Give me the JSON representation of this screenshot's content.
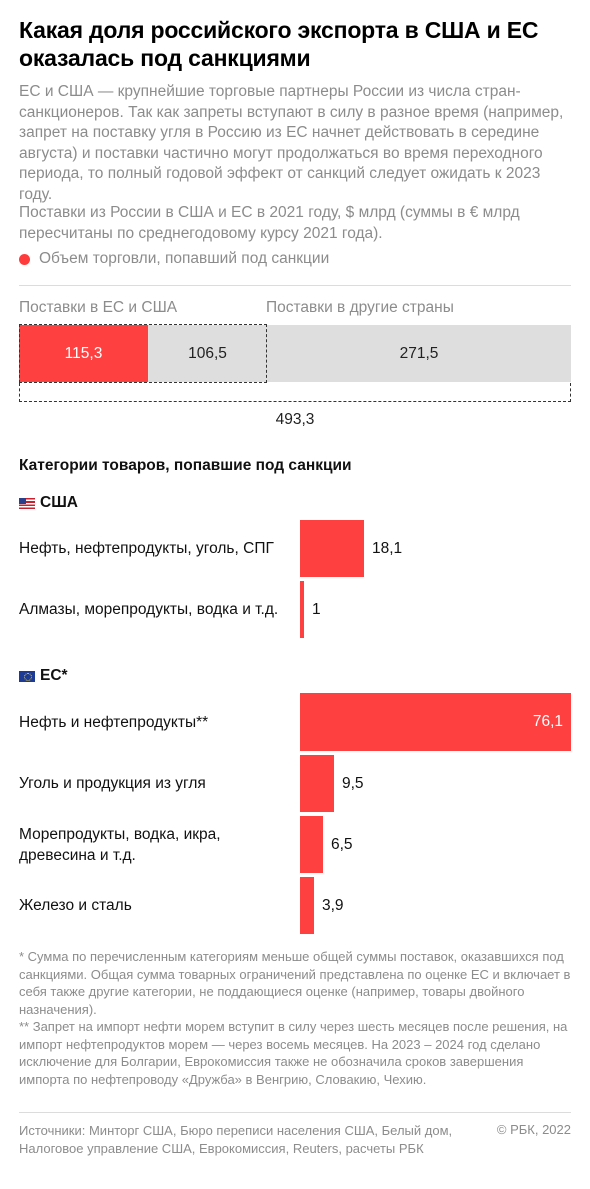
{
  "header": {
    "title": "Какая доля российского экспорта в США и ЕС оказалась под санкциями",
    "intro": "ЕС и США — крупнейшие торговые партнеры России из числа стран-санкционеров. Так как запреты вступают в силу в разное время (например, запрет на поставку угля в Россию из ЕС начнет действовать в середине августа) и поставки частично могут продолжаться во время переходного периода, то полный годовой эффект от санкций следует ожидать к 2023 году.",
    "subtitle": "Поставки из России в США и ЕС в 2021 году, $ млрд (суммы в € млрд пересчитаны по среднегодовому курсу 2021 года).",
    "legend_label": "Объем торговли, попавший под санкции"
  },
  "colors": {
    "sanctioned": "#ff4040",
    "other": "#dedede",
    "text": "#111111",
    "muted": "#8c8c8c"
  },
  "chart_data": [
    {
      "type": "bar",
      "orientation": "horizontal-stacked",
      "group_labels": [
        "Поставки в ЕС и США",
        "Поставки в другие страны"
      ],
      "segments": [
        {
          "label": "115,3",
          "value": 115.3,
          "group": "Поставки в ЕС и США",
          "sanctioned": true
        },
        {
          "label": "106,5",
          "value": 106.5,
          "group": "Поставки в ЕС и США",
          "sanctioned": false
        },
        {
          "label": "271,5",
          "value": 271.5,
          "group": "Поставки в другие страны",
          "sanctioned": false
        }
      ],
      "total": 493.3,
      "total_label": "493,3"
    },
    {
      "type": "bar",
      "orientation": "horizontal",
      "title": "Категории товаров, попавшие под санкции",
      "xlim": [
        0,
        76.1
      ],
      "groups": [
        {
          "name": "США",
          "items": [
            {
              "label": "Нефть, нефтепродукты, уголь, СПГ",
              "value": 18.1,
              "value_label": "18,1"
            },
            {
              "label": "Алмазы, морепродукты, водка и т.д.",
              "value": 1,
              "value_label": "1"
            }
          ]
        },
        {
          "name": "ЕС*",
          "items": [
            {
              "label": "Нефть и нефтепродукты**",
              "value": 76.1,
              "value_label": "76,1"
            },
            {
              "label": "Уголь и продукция из угля",
              "value": 9.5,
              "value_label": "9,5"
            },
            {
              "label": "Морепродукты, водка, икра, древесина и т.д.",
              "value": 6.5,
              "value_label": "6,5"
            },
            {
              "label": "Железо и сталь",
              "value": 3.9,
              "value_label": "3,9"
            }
          ]
        }
      ]
    }
  ],
  "notes": [
    "* Сумма по перечисленным категориям меньше общей суммы поставок, оказавшихся под санкциями. Общая сумма товарных ограничений представлена по оценке ЕС и включает в себя также другие категории, не поддающиеся оценке (например, товары двойного назначения).",
    "** Запрет на импорт нефти морем вступит в силу через шесть месяцев после решения, на импорт нефтепродуктов морем — через восемь месяцев. На 2023 – 2024 год сделано исключение для Болгарии, Еврокомиссия также не обозначила сроков завершения импорта по нефтепроводу «Дружба» в Венгрию, Словакию, Чехию."
  ],
  "footer": {
    "sources": "Источники: Минторг США, Бюро переписи населения США, Белый дом, Налоговое управление США, Еврокомиссия, Reuters, расчеты РБК",
    "copyright": "© РБК, 2022"
  }
}
